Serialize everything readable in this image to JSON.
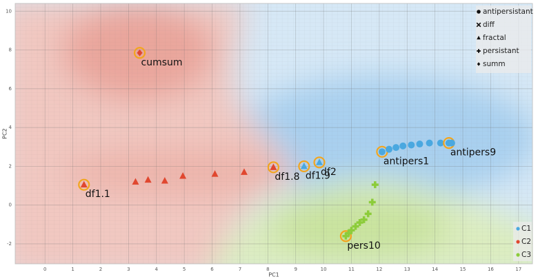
{
  "chart_data": {
    "type": "scatter",
    "x_label": "PC1",
    "y_label": "PC2",
    "xlim": [
      -1.07,
      17.5
    ],
    "ylim": [
      -3.03,
      10.4
    ],
    "xticks": [
      0,
      1,
      2,
      3,
      4,
      5,
      6,
      7,
      8,
      9,
      10,
      11,
      12,
      13,
      14,
      15,
      16,
      17
    ],
    "yticks": [
      -2,
      0,
      2,
      4,
      6,
      8,
      10
    ],
    "grid": true,
    "highlight_color": "#f2a51e",
    "shape_legend": [
      {
        "label": "antipersistant",
        "marker": "circle"
      },
      {
        "label": "diff",
        "marker": "x"
      },
      {
        "label": "fractal",
        "marker": "triangle"
      },
      {
        "label": "persistant",
        "marker": "plus"
      },
      {
        "label": "summ",
        "marker": "diamond"
      }
    ],
    "series": [
      {
        "name": "C1",
        "color": "#4aa8e0",
        "x": [
          12.1,
          12.35,
          12.6,
          12.85,
          13.15,
          13.45,
          13.8,
          14.2,
          14.5,
          14.6,
          9.3,
          9.85
        ],
        "y": [
          2.75,
          2.88,
          2.97,
          3.05,
          3.1,
          3.15,
          3.2,
          3.2,
          3.2,
          3.2,
          2.0,
          2.2
        ],
        "markers": [
          "circle",
          "circle",
          "circle",
          "circle",
          "circle",
          "circle",
          "circle",
          "circle",
          "circle",
          "circle",
          "triangle",
          "triangle"
        ],
        "point_labels": [
          "antipers1",
          null,
          null,
          null,
          null,
          null,
          null,
          null,
          "antipers9",
          null,
          "df1.9",
          "df2"
        ]
      },
      {
        "name": "C2",
        "color": "#e0472f",
        "x": [
          1.4,
          3.25,
          3.7,
          4.3,
          4.95,
          6.1,
          7.15,
          8.2,
          3.4
        ],
        "y": [
          1.05,
          1.2,
          1.3,
          1.25,
          1.5,
          1.6,
          1.7,
          1.95,
          7.85
        ],
        "markers": [
          "triangle",
          "triangle",
          "triangle",
          "triangle",
          "triangle",
          "triangle",
          "triangle",
          "triangle",
          "diamond"
        ],
        "point_labels": [
          "df1.1",
          null,
          null,
          null,
          null,
          null,
          null,
          "df1.8",
          "cumsum"
        ]
      },
      {
        "name": "C3",
        "color": "#8ccc3a",
        "x": [
          10.8,
          10.9,
          11.0,
          11.15,
          11.3,
          11.45,
          11.6,
          11.75,
          11.85
        ],
        "y": [
          -1.6,
          -1.45,
          -1.3,
          -1.1,
          -0.9,
          -0.75,
          -0.45,
          0.15,
          1.05
        ],
        "markers": [
          "plus",
          "plus",
          "plus",
          "plus",
          "plus",
          "plus",
          "plus",
          "plus",
          "plus"
        ],
        "point_labels": [
          "pers10",
          null,
          null,
          null,
          null,
          null,
          null,
          null,
          null
        ]
      }
    ]
  }
}
